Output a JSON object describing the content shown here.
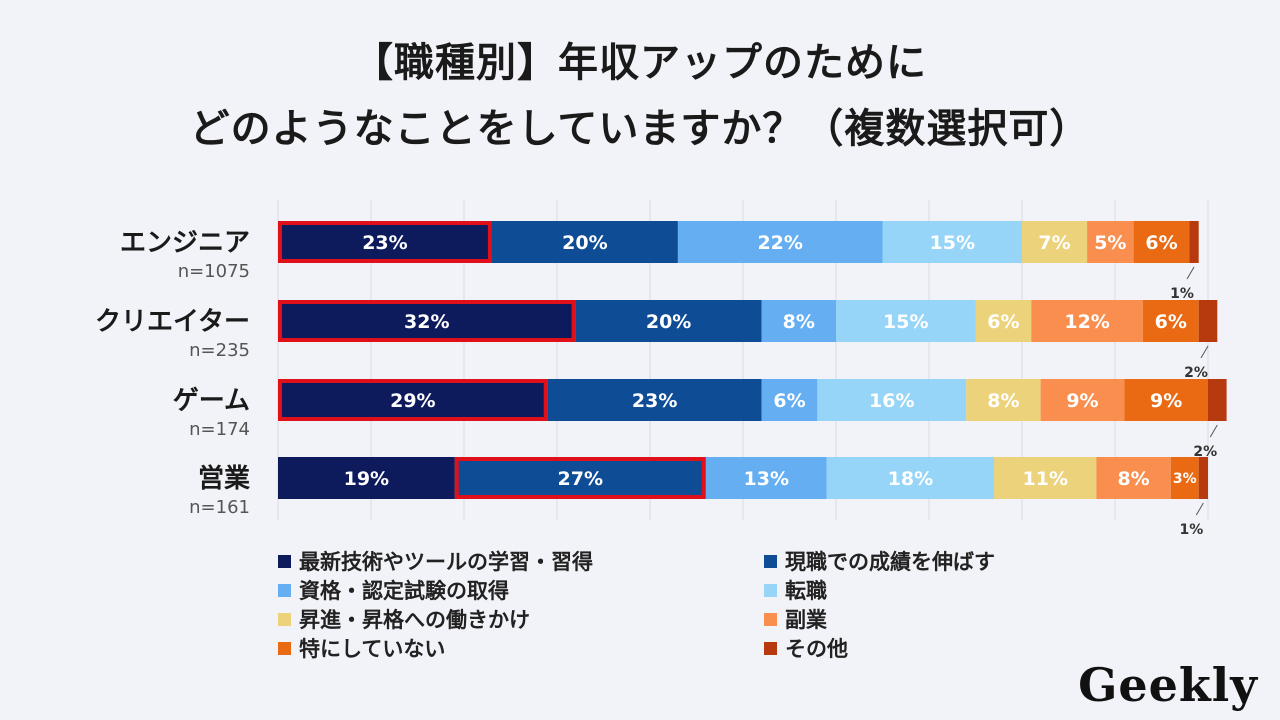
{
  "title": {
    "line1": "【職種別】年収アップのために",
    "line2": "どのようなことをしていますか？（複数選択可）"
  },
  "logo_text": "Geekly",
  "chart_data": {
    "type": "bar",
    "orientation": "horizontal-stacked-100",
    "xlim": [
      0,
      100
    ],
    "categories": [
      {
        "label": "エンジニア",
        "n": "n=1075"
      },
      {
        "label": "クリエイター",
        "n": "n=235"
      },
      {
        "label": "ゲーム",
        "n": "n=174"
      },
      {
        "label": "営業",
        "n": "n=161"
      }
    ],
    "series": [
      {
        "name": "最新技術やツールの学習・習得",
        "color": "#0d1a5c",
        "values": [
          23,
          32,
          29,
          19
        ]
      },
      {
        "name": "現職での成績を伸ばす",
        "color": "#0e4c96",
        "values": [
          20,
          20,
          23,
          27
        ]
      },
      {
        "name": "資格・認定試験の取得",
        "color": "#65aef2",
        "values": [
          22,
          8,
          6,
          13
        ]
      },
      {
        "name": "転職",
        "color": "#96d5f7",
        "values": [
          15,
          15,
          16,
          18
        ]
      },
      {
        "name": "昇進・昇格への働きかけ",
        "color": "#ecd27a",
        "values": [
          7,
          6,
          8,
          11
        ]
      },
      {
        "name": "副業",
        "color": "#f98e4e",
        "values": [
          5,
          12,
          9,
          8
        ]
      },
      {
        "name": "特にしていない",
        "color": "#e96a12",
        "values": [
          6,
          6,
          9,
          3
        ]
      },
      {
        "name": "その他",
        "color": "#b63a0e",
        "values": [
          1,
          2,
          2,
          1
        ]
      }
    ],
    "labels": [
      [
        "23%",
        "20%",
        "22%",
        "15%",
        "7%",
        "5%",
        "6%",
        "1%"
      ],
      [
        "32%",
        "20%",
        "8%",
        "15%",
        "6%",
        "12%",
        "6%",
        "2%"
      ],
      [
        "29%",
        "23%",
        "6%",
        "16%",
        "8%",
        "9%",
        "9%",
        "2%"
      ],
      [
        "19%",
        "27%",
        "13%",
        "18%",
        "11%",
        "8%",
        "3%",
        "1%"
      ]
    ],
    "highlights": [
      {
        "row": 0,
        "series": 0
      },
      {
        "row": 1,
        "series": 0
      },
      {
        "row": 2,
        "series": 0
      },
      {
        "row": 3,
        "series": 1
      }
    ],
    "highlight_color": "#e0101a",
    "grid": true
  }
}
